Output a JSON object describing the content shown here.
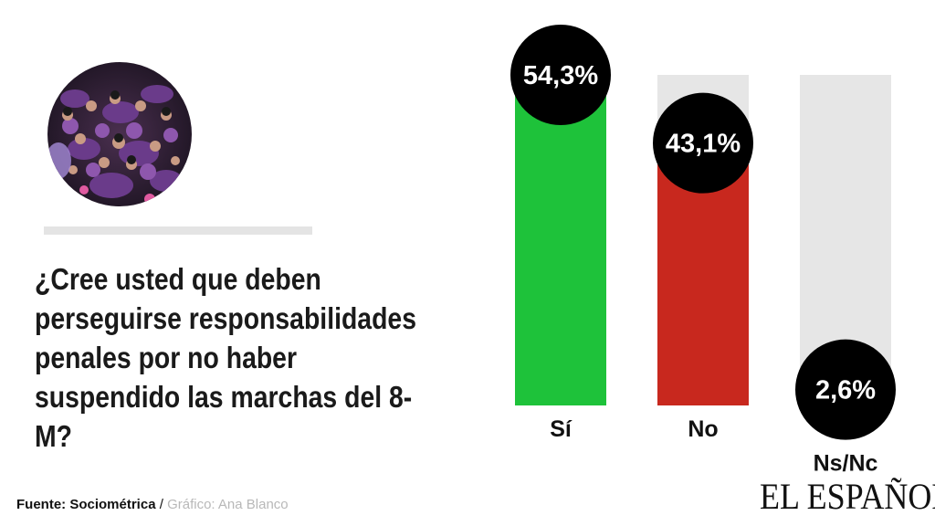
{
  "question": "¿Cree usted que deben perseguirse responsabilidades penales por no haber suspendido las marchas del 8-M?",
  "chart_data": {
    "type": "bar",
    "categories": [
      "Sí",
      "No",
      "Ns/Nc"
    ],
    "values": [
      54.3,
      43.1,
      2.6
    ],
    "value_labels": [
      "54,3%",
      "43,1%",
      "2,6%"
    ],
    "colors": [
      "#1ec23a",
      "#c8281e",
      "#cfcfcf"
    ],
    "track_color": "#e6e6e6",
    "ylim": [
      0,
      54.3
    ],
    "title": "",
    "xlabel": "",
    "ylabel": ""
  },
  "footer": {
    "source_label": "Fuente: Sociométrica",
    "separator": " / ",
    "author_label": "Gráfico: Ana Blanco"
  },
  "logo_text": "EL ESPAÑOL",
  "photo": {
    "description_icon": "crowd-photo"
  }
}
